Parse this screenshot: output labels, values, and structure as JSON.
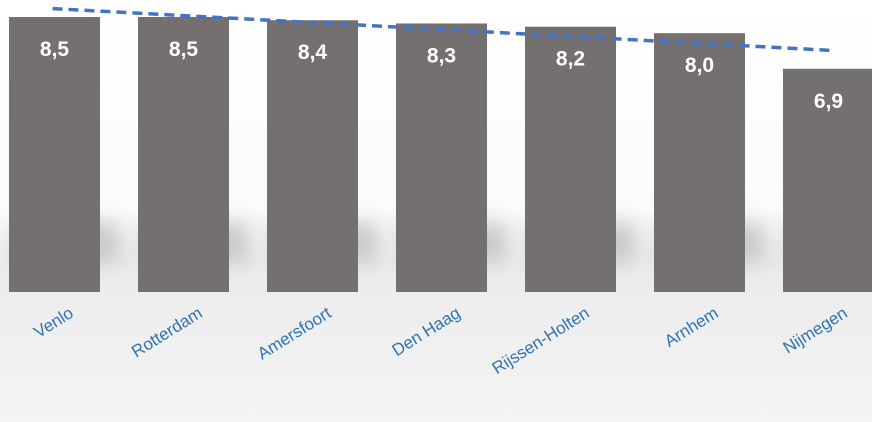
{
  "chart_data": {
    "type": "bar",
    "categories": [
      "Venlo",
      "Rotterdam",
      "Amersfoort",
      "Den Haag",
      "Rijssen-Holten",
      "Arnhem",
      "Nijmegen"
    ],
    "values": [
      8.5,
      8.5,
      8.4,
      8.3,
      8.2,
      8.0,
      6.9
    ],
    "value_labels": [
      "8,5",
      "8,5",
      "8,4",
      "8,3",
      "8,2",
      "8,0",
      "6,9"
    ],
    "title": "",
    "xlabel": "",
    "ylabel": "",
    "grid": false,
    "legend": "none",
    "trendline": {
      "type": "linear",
      "style": "dashed"
    },
    "colors": {
      "bar": "#757070",
      "trendline": "#4472c4",
      "category_label": "#2e74b5",
      "value_label": "#ffffff"
    }
  }
}
